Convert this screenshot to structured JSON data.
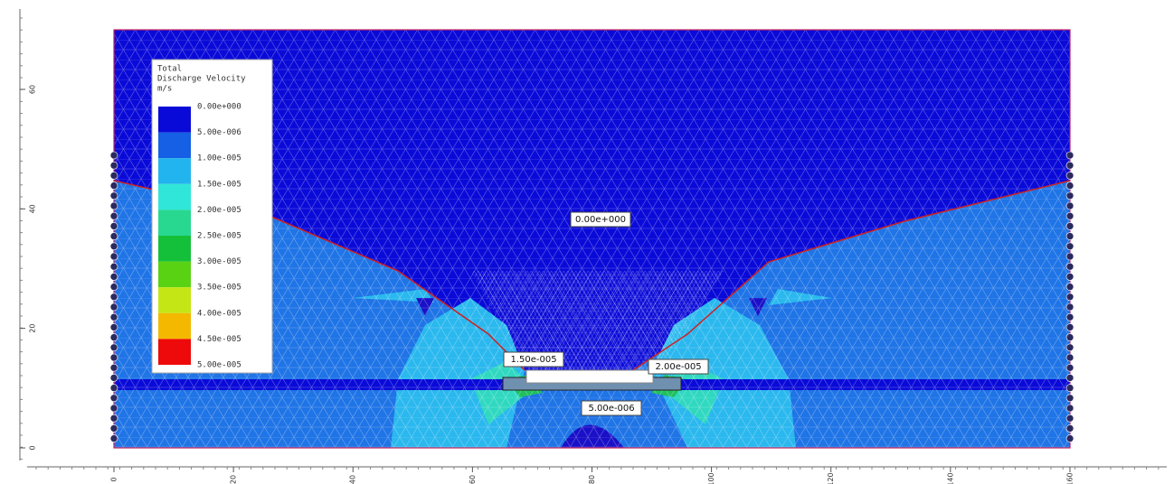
{
  "legend": {
    "title": [
      "Total",
      "Discharge Velocity",
      "m/s"
    ],
    "labels": [
      "0.00e+000",
      "5.00e-006",
      "1.00e-005",
      "1.50e-005",
      "2.00e-005",
      "2.50e-005",
      "3.00e-005",
      "3.50e-005",
      "4.00e-005",
      "4.50e-005",
      "5.00e-005"
    ],
    "colors": [
      "#0a0ad8",
      "#1560e4",
      "#22b4ee",
      "#30e6d8",
      "#28d890",
      "#14c03a",
      "#5ad214",
      "#c4e614",
      "#f4b800",
      "#ee0a0a"
    ]
  },
  "annotations": [
    {
      "text": "0.00e+000"
    },
    {
      "text": "1.50e-005"
    },
    {
      "text": "2.00e-005"
    },
    {
      "text": "5.00e-006"
    }
  ],
  "x_axis": {
    "ticks": [
      0,
      20,
      40,
      60,
      80,
      100,
      120,
      140,
      160
    ]
  },
  "y_axis": {
    "ticks": [
      0,
      20,
      40,
      60
    ]
  }
}
